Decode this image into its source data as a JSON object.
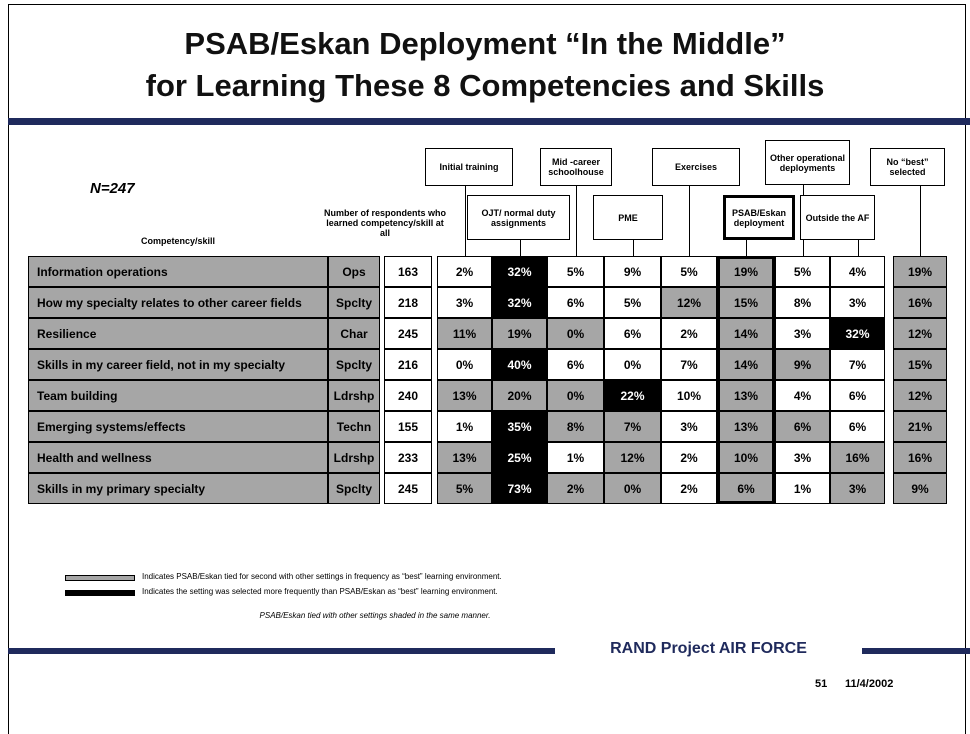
{
  "title_lines": [
    "PSAB/Eskan Deployment “In the Middle”",
    "for Learning These 8 Competencies and Skills"
  ],
  "sample": "N=247",
  "table": {
    "header_skill": "Competency/skill",
    "header_count": "Number of respondents who learned competency/skill at all",
    "settings": [
      "Initial training",
      "OJT/ normal duty assignments",
      "Mid -career schoolhouse",
      "PME",
      "Exercises",
      "PSAB/Eskan deployment",
      "Other operational deployments",
      "Outside the AF",
      "No “best” selected"
    ],
    "rows": [
      [
        "Information operations",
        "Ops",
        "163",
        "2%",
        "32%",
        "5%",
        "9%",
        "5%",
        "19%",
        "5%",
        "4%",
        "19%"
      ],
      [
        "How my specialty relates to other career fields",
        "Spclty",
        "218",
        "3%",
        "32%",
        "6%",
        "5%",
        "12%",
        "15%",
        "8%",
        "3%",
        "16%"
      ],
      [
        "Resilience",
        "Char",
        "245",
        "11%",
        "19%",
        "0%",
        "6%",
        "2%",
        "14%",
        "3%",
        "32%",
        "12%"
      ],
      [
        "Skills in my career field, not in my specialty",
        "Spclty",
        "216",
        "0%",
        "40%",
        "6%",
        "0%",
        "7%",
        "14%",
        "9%",
        "7%",
        "15%"
      ],
      [
        "Team building",
        "Ldrshp",
        "240",
        "13%",
        "20%",
        "0%",
        "22%",
        "10%",
        "13%",
        "4%",
        "6%",
        "12%"
      ],
      [
        "Emerging systems/effects",
        "Techn",
        "155",
        "1%",
        "35%",
        "8%",
        "7%",
        "3%",
        "13%",
        "6%",
        "6%",
        "21%"
      ],
      [
        "Health and wellness",
        "Ldrshp",
        "233",
        "13%",
        "25%",
        "1%",
        "12%",
        "2%",
        "10%",
        "3%",
        "16%",
        "16%"
      ],
      [
        "Skills in my primary specialty",
        "Spclty",
        "245",
        "5%",
        "73%",
        "2%",
        "0%",
        "2%",
        "6%",
        "1%",
        "3%",
        "9%"
      ]
    ],
    "shading": [
      [
        "w",
        "b",
        "w",
        "w",
        "w",
        "g",
        "w",
        "w",
        "g"
      ],
      [
        "w",
        "b",
        "w",
        "w",
        "g",
        "g",
        "w",
        "w",
        "g"
      ],
      [
        "g",
        "g",
        "g",
        "w",
        "w",
        "g",
        "w",
        "b",
        "g"
      ],
      [
        "w",
        "b",
        "w",
        "w",
        "w",
        "g",
        "g",
        "w",
        "g"
      ],
      [
        "g",
        "g",
        "g",
        "b",
        "w",
        "g",
        "w",
        "w",
        "g"
      ],
      [
        "w",
        "b",
        "g",
        "g",
        "w",
        "g",
        "g",
        "w",
        "g"
      ],
      [
        "g",
        "b",
        "w",
        "g",
        "w",
        "g",
        "w",
        "g",
        "g"
      ],
      [
        "g",
        "b",
        "g",
        "g",
        "w",
        "g",
        "w",
        "g",
        "g"
      ]
    ]
  },
  "legend": [
    {
      "shade": "g",
      "text": "Indicates PSAB/Eskan tied for second with other settings in frequency as “best” learning environment."
    },
    {
      "shade": "b",
      "text": "Indicates the setting was selected more frequently than PSAB/Eskan as “best” learning environment."
    }
  ],
  "legend_note": "PSAB/Eskan tied with other settings shaded in the same manner.",
  "footer": {
    "org": "RAND Project AIR FORCE",
    "page": "51",
    "date": "11/4/2002"
  }
}
